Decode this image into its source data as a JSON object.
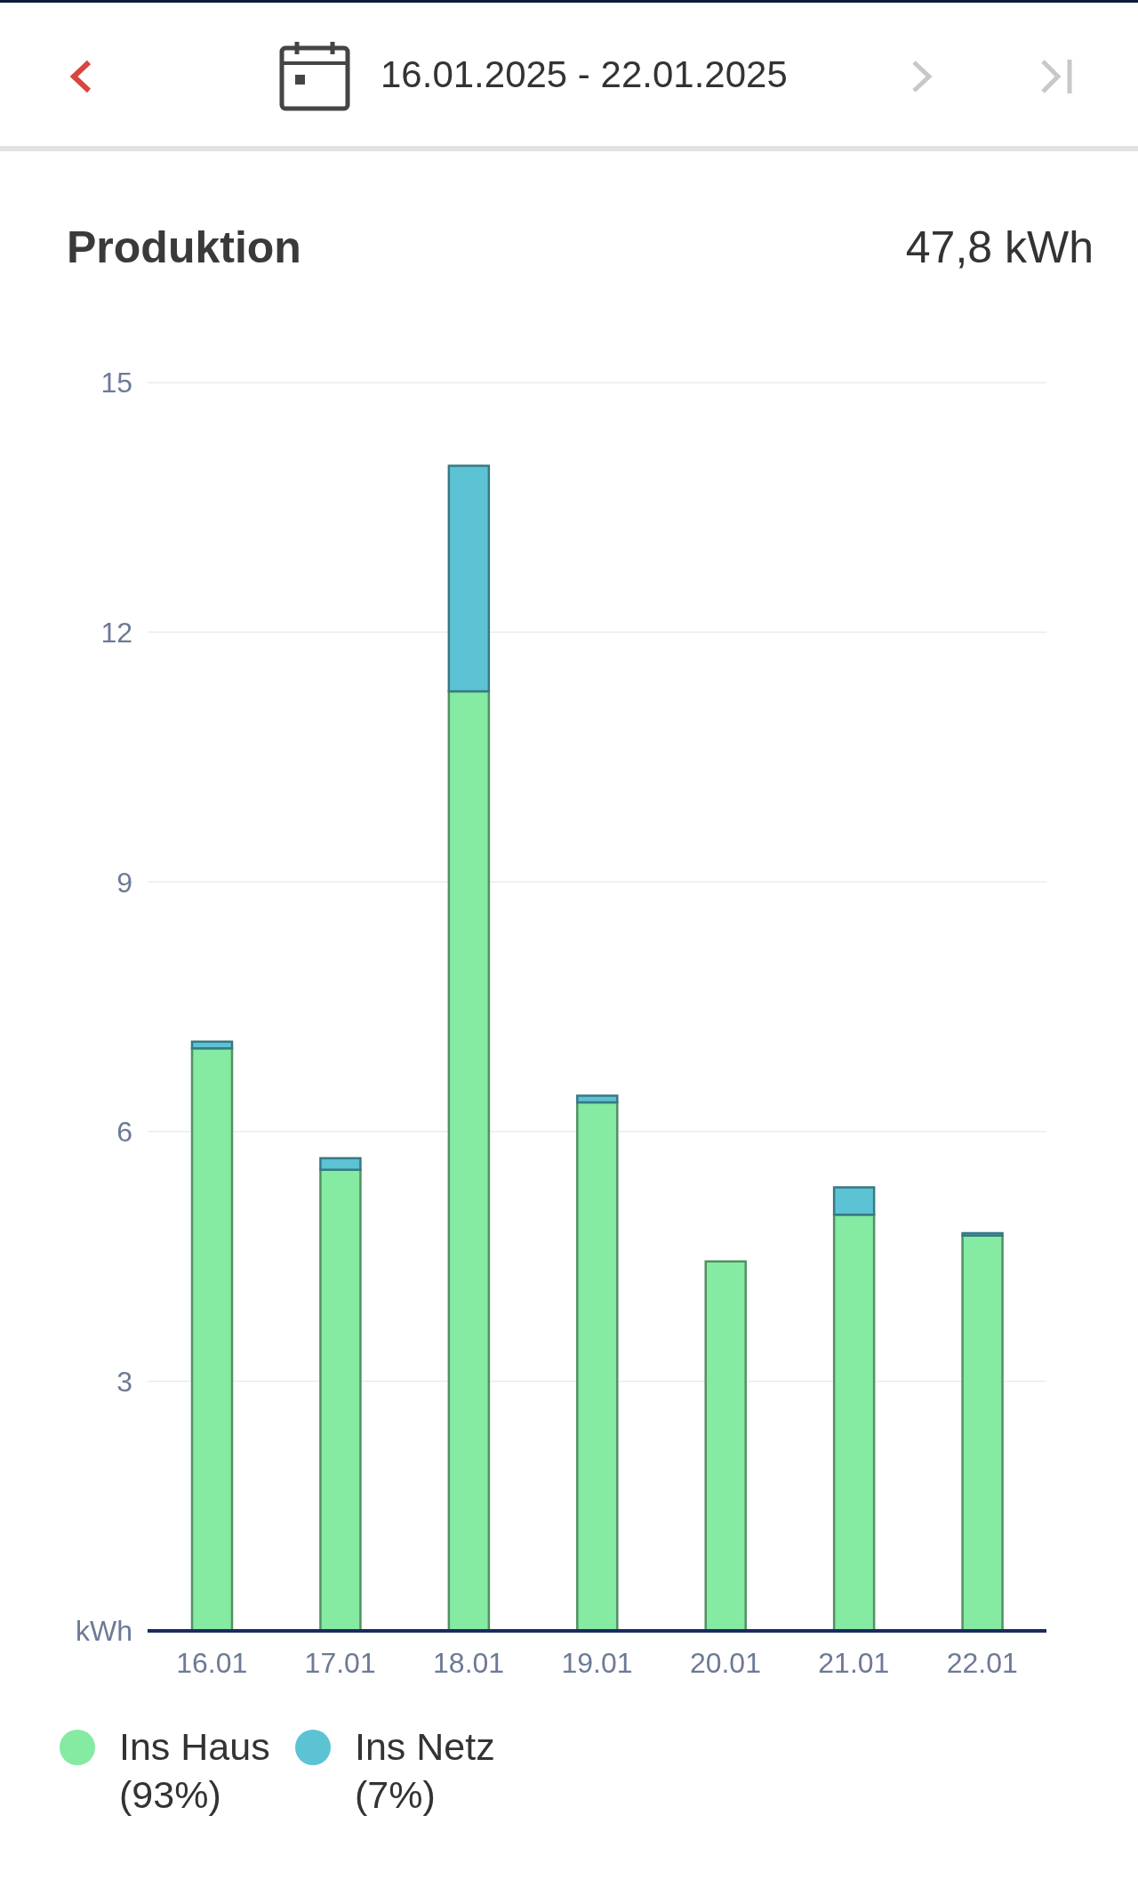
{
  "chart_data": {
    "type": "bar",
    "title": "Produktion",
    "subtitle": "16.01.2025 - 22.01.2025",
    "annotations": [
      "47,8 kWh"
    ],
    "categories": [
      "16.01",
      "17.01",
      "18.01",
      "19.01",
      "20.01",
      "21.01",
      "22.01"
    ],
    "series": [
      {
        "name": "Ins Haus (93%)",
        "color": "#85eaa2",
        "values": [
          7.0,
          5.54,
          11.29,
          6.35,
          4.44,
          5.0,
          4.75
        ]
      },
      {
        "name": "Ins Netz (7%)",
        "color": "#5bc3d3",
        "values": [
          0.08,
          0.14,
          2.71,
          0.08,
          0,
          0.33,
          0.03
        ]
      }
    ],
    "stacked": true,
    "ylim": [
      0,
      15
    ],
    "yticks": [
      {
        "value": 0,
        "label": "kWh"
      },
      3,
      6,
      9,
      12,
      15
    ],
    "grid": "y",
    "legend": "bottom left"
  }
}
